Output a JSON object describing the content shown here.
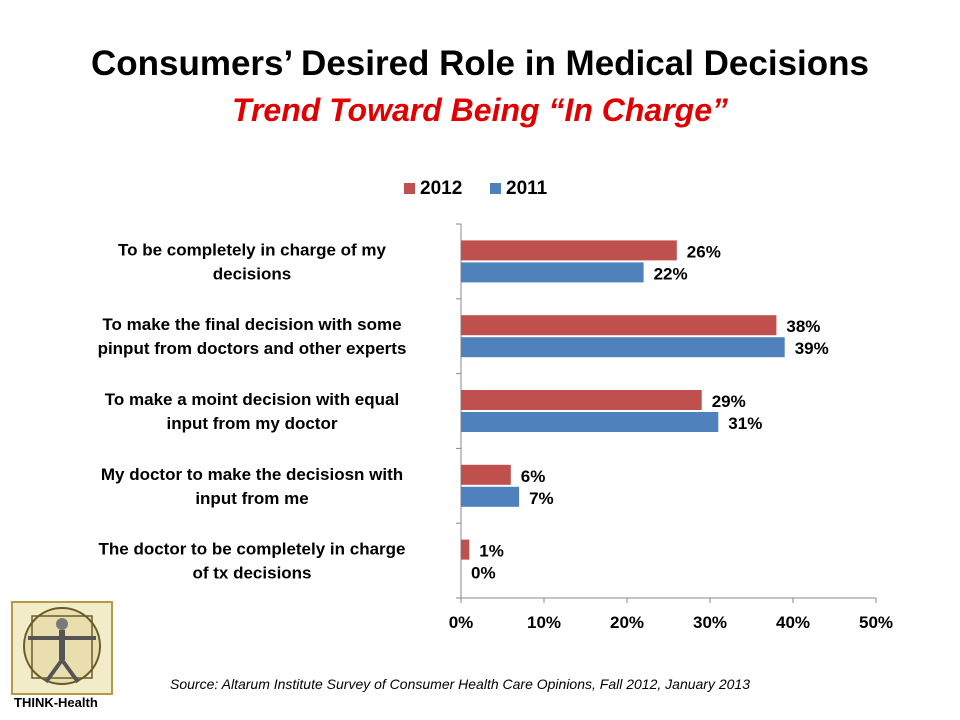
{
  "header": {
    "title": "Consumers’ Desired Role in Medical Decisions",
    "subtitle": "Trend Toward Being “In Charge”"
  },
  "chart_data": {
    "type": "bar",
    "orientation": "horizontal",
    "categories": [
      [
        "To be completely in charge of my",
        "decisions"
      ],
      [
        "To make the final decision with some",
        "pinput from doctors and other experts"
      ],
      [
        "To make a moint decision with equal",
        "input from my doctor"
      ],
      [
        "My doctor to make the decisiosn with",
        "input from me"
      ],
      [
        "The doctor to be completely in charge",
        "of tx decisions"
      ]
    ],
    "series": [
      {
        "name": "2012",
        "color": "#c0504d",
        "values": [
          26,
          38,
          29,
          6,
          1
        ],
        "labels": [
          "26%",
          "38%",
          "29%",
          "6%",
          "1%"
        ]
      },
      {
        "name": "2011",
        "color": "#4f81bd",
        "values": [
          22,
          39,
          31,
          7,
          0
        ],
        "labels": [
          "22%",
          "39%",
          "31%",
          "7%",
          "0%"
        ]
      }
    ],
    "xlim": [
      0,
      50
    ],
    "xticks": [
      0,
      10,
      20,
      30,
      40,
      50
    ],
    "xtick_labels": [
      "0%",
      "10%",
      "20%",
      "30%",
      "40%",
      "50%"
    ],
    "legend_position": "top",
    "grid": false
  },
  "footer": {
    "source": "Source: Altarum Institute Survey of Consumer Health Care Opinions, Fall 2012, January 2013",
    "logo_text": "THINK-Health"
  }
}
